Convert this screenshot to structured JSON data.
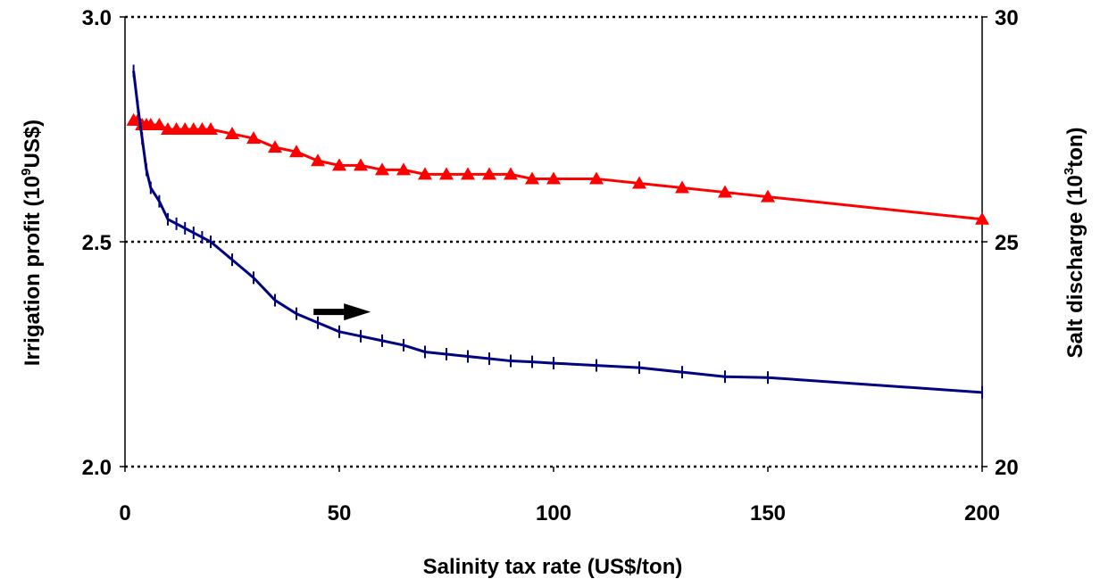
{
  "chart_data": {
    "type": "line",
    "title": "",
    "xlabel": "Salinity tax rate (US$/ton)",
    "ylabel": {
      "pre": "Irrigation profit (10",
      "sup": "9",
      "post": "US$)"
    },
    "y2label": {
      "pre": "Salt discharge (10",
      "sup": "3",
      "post": "ton)"
    },
    "xlim": [
      0,
      200
    ],
    "ylim": [
      2.0,
      3.0
    ],
    "y2lim": [
      20,
      30
    ],
    "xticks": [
      "0",
      "50",
      "100",
      "150",
      "200"
    ],
    "yticks": [
      "2.0",
      "2.5",
      "3.0"
    ],
    "y2ticks": [
      "20",
      "25",
      "30"
    ],
    "grid": "dotted horizontal at y ticks",
    "colors": {
      "profit": "#ff0000",
      "discharge": "#000080",
      "arrow": "#000000"
    },
    "annotation": {
      "type": "arrow",
      "direction": "right",
      "meaning": "discharge series uses right axis"
    },
    "series": [
      {
        "axis": "left",
        "marker": "triangle",
        "x": [
          2,
          3,
          4,
          5,
          6,
          8,
          10,
          12,
          14,
          16,
          18,
          20,
          25,
          30,
          35,
          40,
          45,
          50,
          55,
          60,
          65,
          70,
          75,
          80,
          85,
          90,
          95,
          100,
          110,
          120,
          130,
          140,
          150,
          200
        ],
        "y": [
          2.77,
          2.77,
          2.76,
          2.76,
          2.76,
          2.76,
          2.75,
          2.75,
          2.75,
          2.75,
          2.75,
          2.75,
          2.74,
          2.73,
          2.71,
          2.7,
          2.68,
          2.67,
          2.67,
          2.66,
          2.66,
          2.65,
          2.65,
          2.65,
          2.65,
          2.65,
          2.64,
          2.64,
          2.64,
          2.63,
          2.62,
          2.61,
          2.6,
          2.55
        ]
      },
      {
        "axis": "right",
        "marker": "plus",
        "x": [
          2,
          3,
          4,
          5,
          6,
          8,
          10,
          12,
          14,
          16,
          18,
          20,
          25,
          30,
          35,
          40,
          45,
          50,
          55,
          60,
          65,
          70,
          75,
          80,
          85,
          90,
          95,
          100,
          110,
          120,
          130,
          140,
          150,
          200
        ],
        "y": [
          28.8,
          28.0,
          27.3,
          26.6,
          26.2,
          25.9,
          25.5,
          25.4,
          25.3,
          25.2,
          25.1,
          25.0,
          24.6,
          24.2,
          23.7,
          23.4,
          23.2,
          23.0,
          22.9,
          22.8,
          22.7,
          22.55,
          22.5,
          22.45,
          22.4,
          22.35,
          22.33,
          22.3,
          22.25,
          22.2,
          22.1,
          22.0,
          21.98,
          21.65
        ]
      }
    ]
  }
}
